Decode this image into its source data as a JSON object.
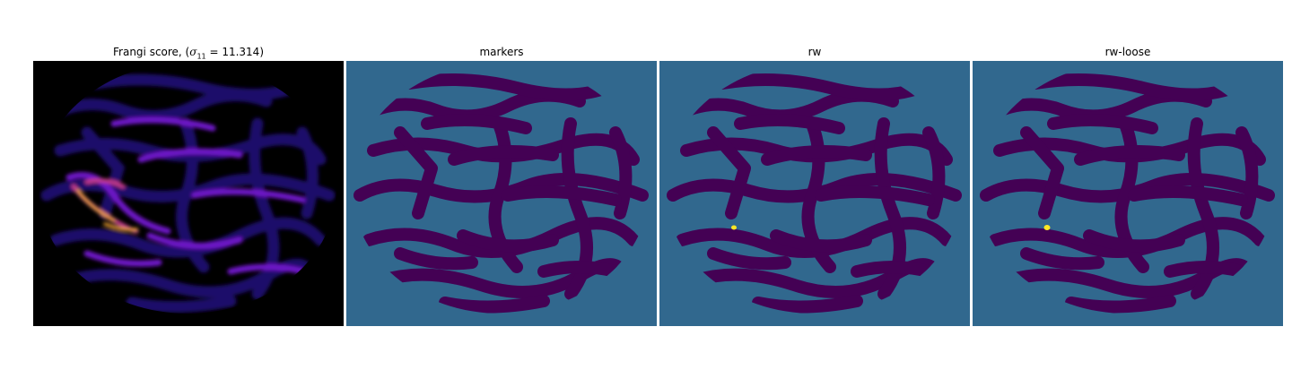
{
  "panels": [
    {
      "id": "frangi",
      "title_prefix": "Frangi score, (",
      "title_symbol": "σ",
      "title_subscript": "11",
      "title_suffix": " = 11.314)"
    },
    {
      "id": "markers",
      "title": "markers"
    },
    {
      "id": "rw",
      "title": "rw"
    },
    {
      "id": "rw-loose",
      "title": "rw-loose"
    }
  ],
  "colors": {
    "background_black": "#000000",
    "frangi_low": "#1a0a6b",
    "frangi_mid": "#6e12c8",
    "frangi_high": "#f0a030",
    "label_background": "#31688e",
    "label_dark": "#440154",
    "label_bright": "#fde725"
  }
}
